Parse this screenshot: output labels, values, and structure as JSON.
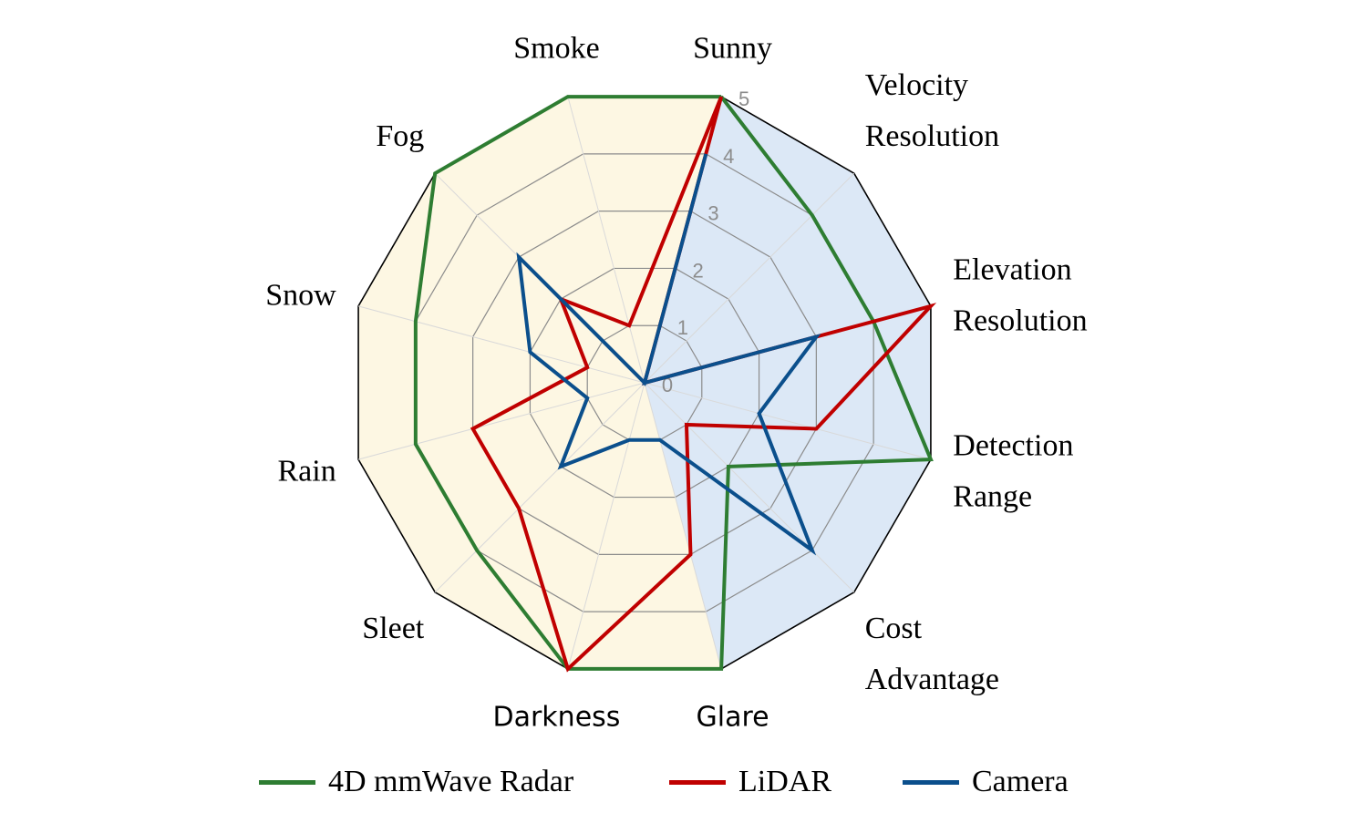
{
  "chart_data": {
    "type": "radar",
    "title": "",
    "categories": [
      [
        "Sunny"
      ],
      [
        "Velocity",
        "Resolution"
      ],
      [
        "Elevation",
        "Resolution"
      ],
      [
        "Detection",
        "Range"
      ],
      [
        "Cost",
        "Advantage"
      ],
      [
        "Glare"
      ],
      [
        "Darkness"
      ],
      [
        "Sleet"
      ],
      [
        "Rain"
      ],
      [
        "Snow"
      ],
      [
        "Fog"
      ],
      [
        "Smoke"
      ]
    ],
    "radial_ticks": [
      "0",
      "1",
      "2",
      "3",
      "4",
      "5"
    ],
    "rlim": [
      0,
      5
    ],
    "grid": true,
    "shaded_regions": [
      {
        "color": "#dce8f6",
        "from_category": 0,
        "to_category": 5
      },
      {
        "color": "#fdf7e3",
        "from_category": 5,
        "to_category": 0
      }
    ],
    "series": [
      {
        "name": "4D mmWave Radar",
        "color": "#2e7d32",
        "values": [
          5,
          4,
          4,
          5,
          2,
          5,
          5,
          4,
          4,
          4,
          5,
          5
        ]
      },
      {
        "name": "LiDAR",
        "color": "#c00000",
        "values": [
          5,
          0,
          5,
          3,
          1,
          3,
          5,
          3,
          3,
          1,
          2,
          1
        ]
      },
      {
        "name": "Camera",
        "color": "#0b4f8c",
        "values": [
          4,
          0,
          3,
          2,
          4,
          1,
          1,
          2,
          1,
          2,
          3,
          0
        ]
      }
    ],
    "legend_position": "bottom"
  }
}
